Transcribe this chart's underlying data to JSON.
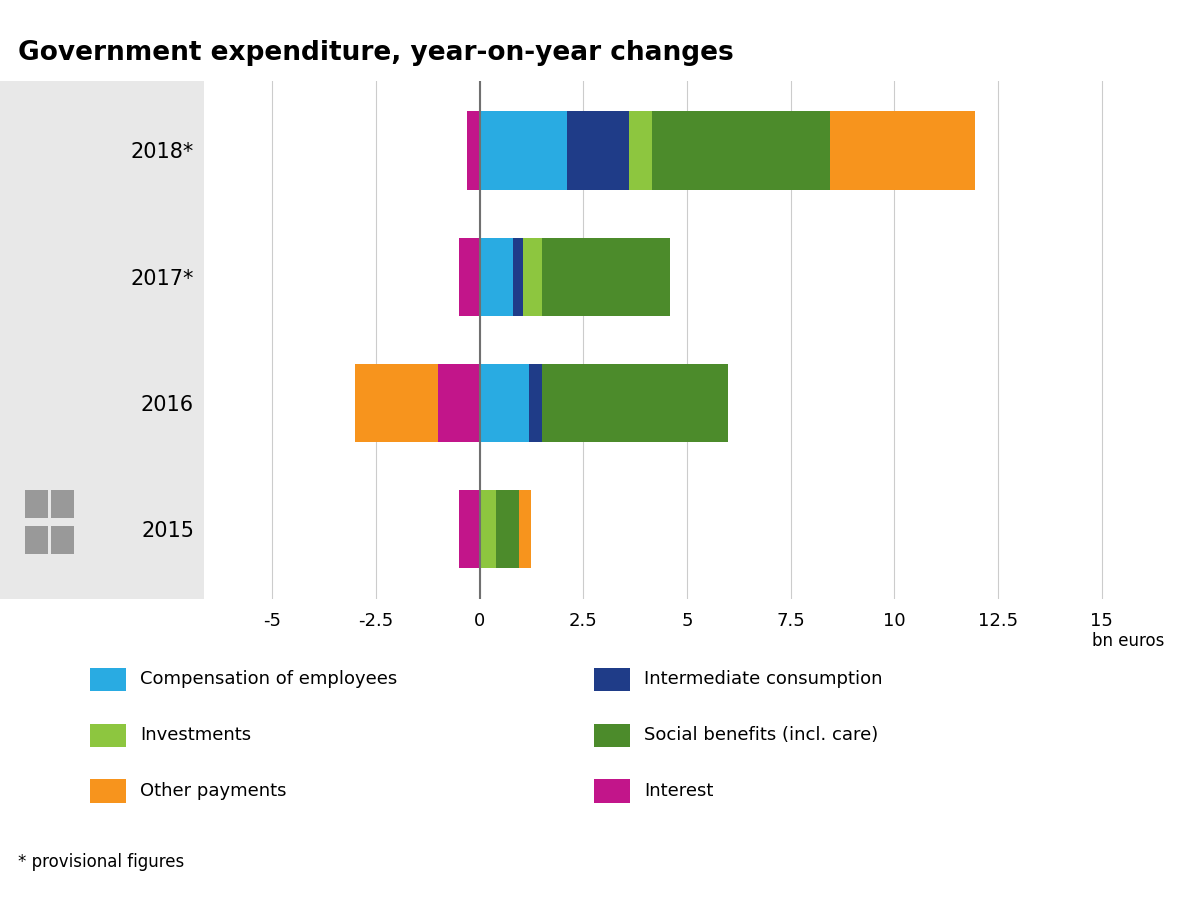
{
  "title": "Government expenditure, year-on-year changes",
  "years": [
    "2015",
    "2016",
    "2017*",
    "2018*"
  ],
  "xlabel": "bn euros",
  "xlim": [
    -6.5,
    16.5
  ],
  "xticks": [
    -5,
    -2.5,
    0,
    2.5,
    5,
    7.5,
    10,
    12.5,
    15
  ],
  "xtick_labels": [
    "-5",
    "-2.5",
    "0",
    "2.5",
    "5",
    "7.5",
    "10",
    "12.5",
    "15"
  ],
  "positive_order": [
    "Compensation of employees",
    "Intermediate consumption",
    "Investments",
    "Social benefits (incl. care)",
    "Other payments"
  ],
  "negative_order": [
    "Interest",
    "Other payments"
  ],
  "series": {
    "Compensation of employees": {
      "color": "#29ABE2",
      "values": [
        0.0,
        1.2,
        0.8,
        2.1
      ]
    },
    "Intermediate consumption": {
      "color": "#1F3C88",
      "values": [
        -0.3,
        0.3,
        0.25,
        1.5
      ]
    },
    "Investments": {
      "color": "#8DC63F",
      "values": [
        0.4,
        0.0,
        0.45,
        0.55
      ]
    },
    "Social benefits (incl. care)": {
      "color": "#4C8B2B",
      "values": [
        0.55,
        4.5,
        3.1,
        4.3
      ]
    },
    "Other payments": {
      "color": "#F7941D",
      "values": [
        0.3,
        -2.0,
        0.0,
        3.5
      ]
    },
    "Interest": {
      "color": "#C2158A",
      "values": [
        -0.5,
        -1.0,
        -0.5,
        -0.3
      ]
    }
  },
  "legend_left": [
    [
      "Compensation of employees",
      "#29ABE2"
    ],
    [
      "Investments",
      "#8DC63F"
    ],
    [
      "Other payments",
      "#F7941D"
    ]
  ],
  "legend_right": [
    [
      "Intermediate consumption",
      "#1F3C88"
    ],
    [
      "Social benefits (incl. care)",
      "#4C8B2B"
    ],
    [
      "Interest",
      "#C2158A"
    ]
  ],
  "footnote": "* provisional figures",
  "gray_panel_color": "#e8e8e8",
  "grid_color": "#cccccc",
  "zero_line_color": "#707070"
}
